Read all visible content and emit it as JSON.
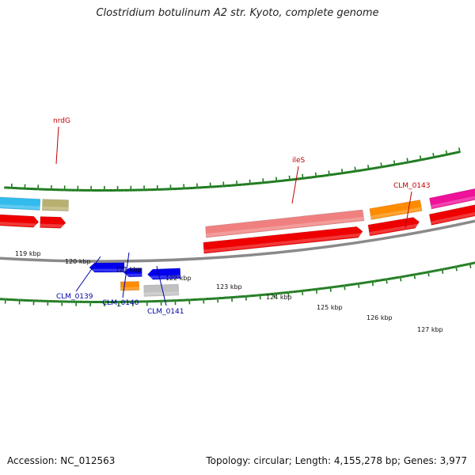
{
  "title": "Clostridium botulinum A2 str. Kyoto, complete genome",
  "footer": {
    "accession": "Accession: NC_012563",
    "summary": "Topology: circular; Length: 4,155,278 bp; Genes: 3,977"
  },
  "colors": {
    "backbone": "#8a8a8a",
    "tick": "#1e7a1e",
    "label_red": "#c00000",
    "label_blue": "#0000aa"
  },
  "kbp_labels": [
    "119 kbp",
    "120 kbp",
    "121 kbp",
    "122 kbp",
    "123 kbp",
    "124 kbp",
    "125 kbp",
    "126 kbp",
    "127 kbp"
  ],
  "features": [
    {
      "color": "#33bbee"
    },
    {
      "color": "#b8b070"
    },
    {
      "color": "#ee0000"
    },
    {
      "color": "#ee0000"
    },
    {
      "color": "#0000ee"
    },
    {
      "color": "#0000ee"
    },
    {
      "color": "#0000ee"
    },
    {
      "color": "#ff8c00"
    },
    {
      "color": "#c0c0c0"
    },
    {
      "color": "#f08080"
    },
    {
      "color": "#ee0000"
    },
    {
      "color": "#ff8c00"
    },
    {
      "color": "#ee0000"
    },
    {
      "color": "#ee1199"
    },
    {
      "color": "#ee0000"
    }
  ],
  "gene_labels": [
    {
      "text": "nrdG",
      "color": "#c00000"
    },
    {
      "text": "ileS",
      "color": "#c00000"
    },
    {
      "text": "CLM_0143",
      "color": "#c00000"
    },
    {
      "text": "CLM_0139",
      "color": "#0000aa"
    },
    {
      "text": "CLM_0140",
      "color": "#0000aa"
    },
    {
      "text": "CLM_0141",
      "color": "#0000aa"
    }
  ]
}
